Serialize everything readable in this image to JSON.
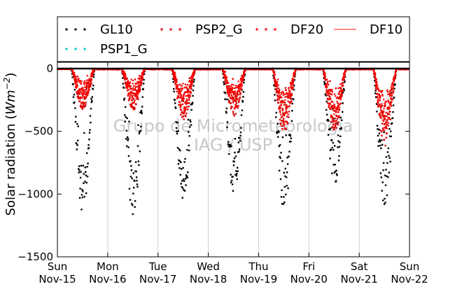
{
  "chart_data": {
    "type": "scatter",
    "ylabel": "Solar radiation (Wm^-2)",
    "ylabel_prefix": "Solar radiation (",
    "ylabel_unit_main": "Wm",
    "ylabel_unit_exp": "−2",
    "ylabel_suffix": ")",
    "ylim": [
      -1500,
      50
    ],
    "xlim": [
      "2015-11-15",
      "2015-11-22"
    ],
    "y_ticks": [
      0,
      -500,
      -1000,
      -1500
    ],
    "y_tick_labels": [
      "0",
      "−500",
      "−1000",
      "−1500"
    ],
    "x_ticks": [
      {
        "day": "Sun",
        "date": "Nov-15"
      },
      {
        "day": "Mon",
        "date": "Nov-16"
      },
      {
        "day": "Tue",
        "date": "Nov-17"
      },
      {
        "day": "Wed",
        "date": "Nov-18"
      },
      {
        "day": "Thu",
        "date": "Nov-19"
      },
      {
        "day": "Fri",
        "date": "Nov-20"
      },
      {
        "day": "Sat",
        "date": "Nov-21"
      },
      {
        "day": "Sun",
        "date": "Nov-22"
      }
    ],
    "grid": "vertical",
    "legend_placement": "top",
    "watermark": [
      "Grupo de Micrometeorologia",
      "IAG / USP"
    ],
    "series": [
      {
        "name": "GL10",
        "color": "#000000",
        "marker": "dot",
        "daily_peak": [
          {
            "day": "Nov-15",
            "peak": -1180
          },
          {
            "day": "Nov-16",
            "peak": -1200
          },
          {
            "day": "Nov-17",
            "peak": -1080
          },
          {
            "day": "Nov-18",
            "peak": -1000
          },
          {
            "day": "Nov-19",
            "peak": -1150
          },
          {
            "day": "Nov-20",
            "peak": -930
          },
          {
            "day": "Nov-21",
            "peak": -1100
          }
        ]
      },
      {
        "name": "PSP2_G",
        "color": "#dd0000",
        "marker": "dot",
        "daily_peak": [
          {
            "day": "Nov-15",
            "peak": -330
          },
          {
            "day": "Nov-16",
            "peak": -330
          },
          {
            "day": "Nov-17",
            "peak": -420
          },
          {
            "day": "Nov-18",
            "peak": -380
          },
          {
            "day": "Nov-19",
            "peak": -530
          },
          {
            "day": "Nov-20",
            "peak": -530
          },
          {
            "day": "Nov-21",
            "peak": -620
          }
        ]
      },
      {
        "name": "DF20",
        "color": "#ff0000",
        "marker": "dot"
      },
      {
        "name": "DF10",
        "color": "#ff4444",
        "marker": "line"
      },
      {
        "name": "PSP1_G",
        "color": "#00c8c8",
        "marker": "dot"
      }
    ]
  }
}
